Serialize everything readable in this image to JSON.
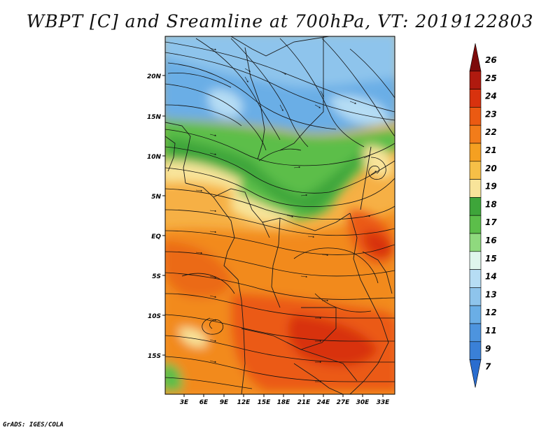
{
  "title": "WBPT [C] and Sreamline at 700hPa, VT: 2019122803",
  "credit": "GrADS: IGES/COLA",
  "map": {
    "lat_labels": [
      "20N",
      "15N",
      "10N",
      "5N",
      "EQ",
      "5S",
      "10S",
      "15S"
    ],
    "lon_labels": [
      "3E",
      "6E",
      "9E",
      "12E",
      "15E",
      "18E",
      "21E",
      "24E",
      "27E",
      "30E",
      "33E"
    ],
    "variable": "Wet-bulb potential temperature",
    "units": "C",
    "level": "700hPa",
    "valid_time": "2019122803"
  },
  "colorbar": {
    "levels": [
      "26",
      "25",
      "24",
      "23",
      "22",
      "21",
      "20",
      "19",
      "18",
      "17",
      "16",
      "15",
      "14",
      "13",
      "12",
      "11",
      "9",
      "7"
    ],
    "colors": [
      "#7d0a0a",
      "#b01a0f",
      "#d8320e",
      "#eb5a12",
      "#f27c1a",
      "#f5a021",
      "#f6bf47",
      "#f8e49a",
      "#3ea53a",
      "#5cbe4a",
      "#8fd97e",
      "#dff6ec",
      "#b6ddf4",
      "#8ec4ec",
      "#6aaee6",
      "#4d94de",
      "#3a80d7",
      "#2a6dcf"
    ]
  }
}
